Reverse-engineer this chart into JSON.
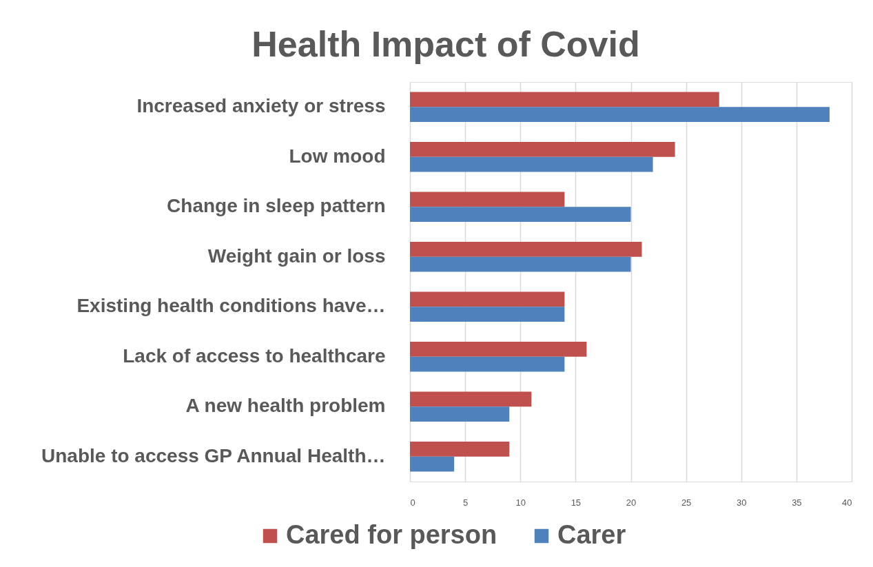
{
  "chart_data": {
    "type": "bar",
    "orientation": "horizontal",
    "title": "Health Impact of Covid",
    "categories": [
      "Increased anxiety or stress",
      "Low mood",
      "Change in sleep pattern",
      "Weight gain or loss",
      "Existing health conditions have…",
      "Lack of access to healthcare",
      "A new health problem",
      "Unable to access GP Annual Health…"
    ],
    "series": [
      {
        "name": "Cared for person",
        "color": "#c0504d",
        "values": [
          28,
          24,
          14,
          21,
          14,
          16,
          11,
          9
        ]
      },
      {
        "name": "Carer",
        "color": "#4f81bd",
        "values": [
          38,
          22,
          20,
          20,
          14,
          14,
          9,
          4
        ]
      }
    ],
    "xlim": [
      0,
      40
    ],
    "xticks": [
      0,
      5,
      10,
      15,
      20,
      25,
      30,
      35,
      40
    ],
    "grid": "x",
    "legend": "bottom"
  }
}
